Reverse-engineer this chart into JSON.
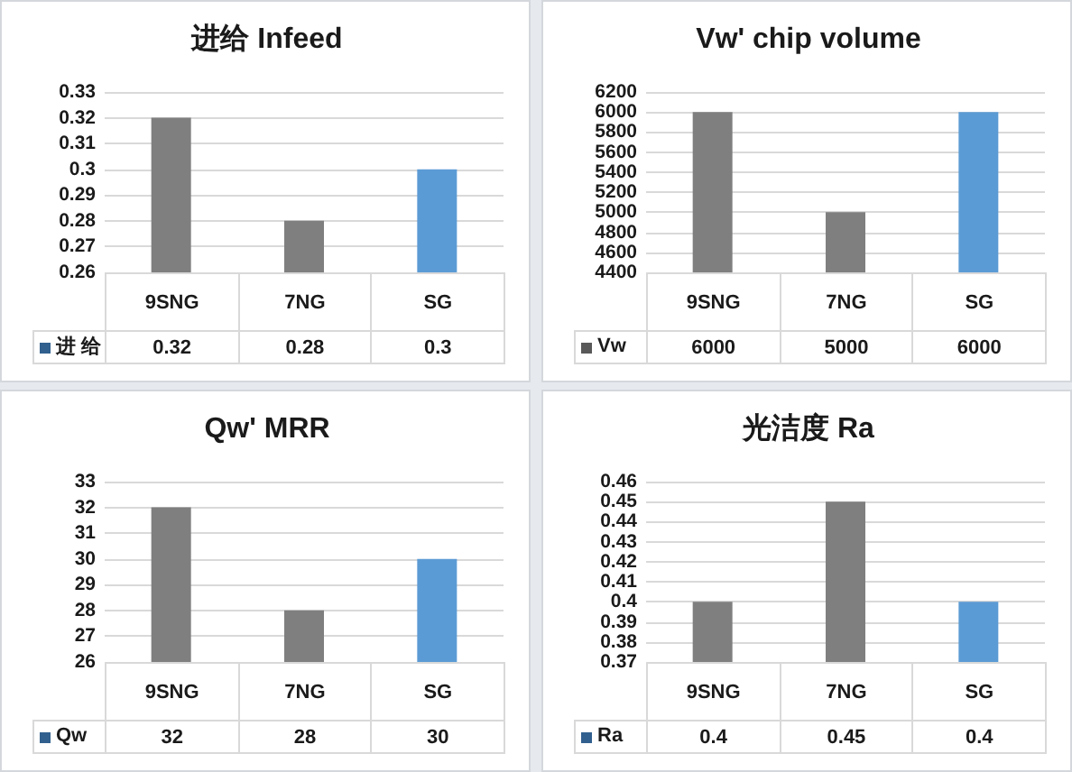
{
  "chart_data": [
    {
      "type": "bar",
      "title": "进给 Infeed",
      "categories": [
        "9SNG",
        "7NG",
        "SG"
      ],
      "series": [
        {
          "name": "进 给",
          "color": "#31608f",
          "colors": [
            "#7f7f7f",
            "#7f7f7f",
            "#5b9bd5"
          ],
          "values": [
            0.32,
            0.28,
            0.3
          ]
        }
      ],
      "ylim": [
        0.26,
        0.33
      ],
      "yticks": [
        0.26,
        0.27,
        0.28,
        0.29,
        0.3,
        0.31,
        0.32,
        0.33
      ],
      "grid": "y",
      "legend": "bottom",
      "data_labels": true
    },
    {
      "type": "bar",
      "title": "Vw' chip volume",
      "categories": [
        "9SNG",
        "7NG",
        "SG"
      ],
      "series": [
        {
          "name": "Vw",
          "color": "#595959",
          "colors": [
            "#7f7f7f",
            "#7f7f7f",
            "#5b9bd5"
          ],
          "values": [
            6000,
            5000,
            6000
          ]
        }
      ],
      "ylim": [
        4400,
        6200
      ],
      "yticks": [
        4400,
        4600,
        4800,
        5000,
        5200,
        5400,
        5600,
        5800,
        6000,
        6200
      ],
      "grid": "y",
      "legend": "bottom",
      "data_labels": true
    },
    {
      "type": "bar",
      "title": "Qw' MRR",
      "categories": [
        "9SNG",
        "7NG",
        "SG"
      ],
      "series": [
        {
          "name": "Qw",
          "color": "#31608f",
          "colors": [
            "#7f7f7f",
            "#7f7f7f",
            "#5b9bd5"
          ],
          "values": [
            32,
            28,
            30
          ]
        }
      ],
      "ylim": [
        26,
        33
      ],
      "yticks": [
        26,
        27,
        28,
        29,
        30,
        31,
        32,
        33
      ],
      "grid": "y",
      "legend": "bottom",
      "data_labels": true
    },
    {
      "type": "bar",
      "title": "光洁度 Ra",
      "categories": [
        "9SNG",
        "7NG",
        "SG"
      ],
      "series": [
        {
          "name": "Ra",
          "color": "#31608f",
          "colors": [
            "#7f7f7f",
            "#7f7f7f",
            "#5b9bd5"
          ],
          "values": [
            0.4,
            0.45,
            0.4
          ]
        }
      ],
      "ylim": [
        0.37,
        0.46
      ],
      "yticks": [
        0.37,
        0.38,
        0.39,
        0.4,
        0.41,
        0.42,
        0.43,
        0.44,
        0.45,
        0.46
      ],
      "grid": "y",
      "legend": "bottom",
      "data_labels": true
    }
  ]
}
